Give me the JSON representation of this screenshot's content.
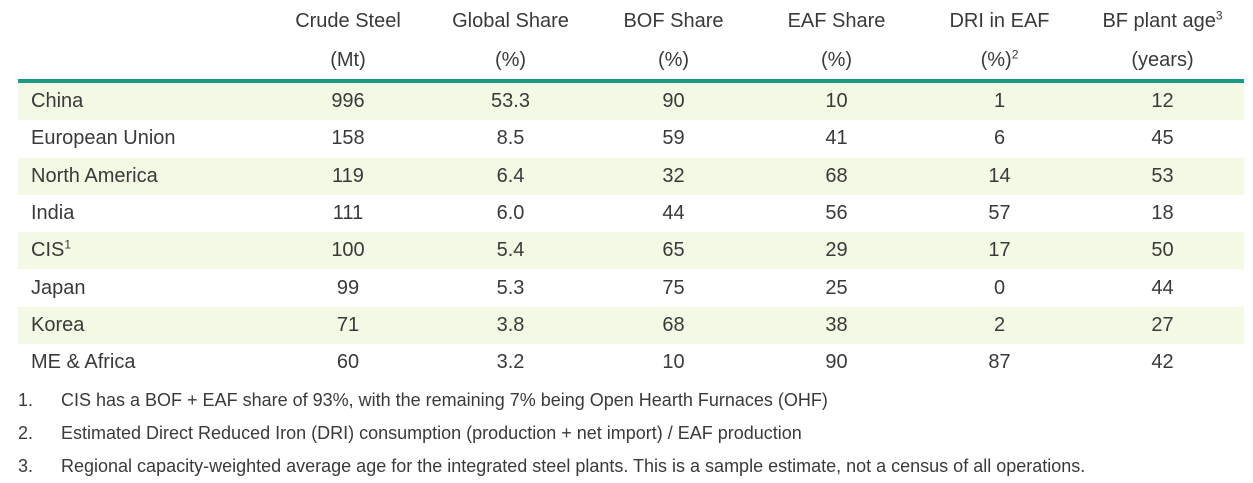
{
  "header": {
    "row1": [
      "Crude Steel",
      "Global Share",
      "BOF Share",
      "EAF Share",
      "DRI in EAF",
      "BF plant age"
    ],
    "row2": [
      "(Mt)",
      "(%)",
      "(%)",
      "(%)",
      "(%)",
      "(years)"
    ],
    "sup_dri": "2",
    "sup_bf": "3"
  },
  "rows": [
    {
      "region": "China",
      "sup": "",
      "values": [
        "996",
        "53.3",
        "90",
        "10",
        "1",
        "12"
      ]
    },
    {
      "region": "European Union",
      "sup": "",
      "values": [
        "158",
        "8.5",
        "59",
        "41",
        "6",
        "45"
      ]
    },
    {
      "region": "North America",
      "sup": "",
      "values": [
        "119",
        "6.4",
        "32",
        "68",
        "14",
        "53"
      ]
    },
    {
      "region": "India",
      "sup": "",
      "values": [
        "111",
        "6.0",
        "44",
        "56",
        "57",
        "18"
      ]
    },
    {
      "region": "CIS",
      "sup": "1",
      "values": [
        "100",
        "5.4",
        "65",
        "29",
        "17",
        "50"
      ]
    },
    {
      "region": "Japan",
      "sup": "",
      "values": [
        "99",
        "5.3",
        "75",
        "25",
        "0",
        "44"
      ]
    },
    {
      "region": "Korea",
      "sup": "",
      "values": [
        "71",
        "3.8",
        "68",
        "38",
        "2",
        "27"
      ]
    },
    {
      "region": "ME & Africa",
      "sup": "",
      "values": [
        "60",
        "3.2",
        "10",
        "90",
        "87",
        "42"
      ]
    }
  ],
  "notes": [
    {
      "num": "1.",
      "text": "CIS has a BOF + EAF share of 93%, with the remaining 7% being Open Hearth Furnaces (OHF)"
    },
    {
      "num": "2.",
      "text": "Estimated Direct Reduced Iron (DRI) consumption (production + net import) / EAF production"
    },
    {
      "num": "3.",
      "text": "Regional capacity-weighted average age for the integrated steel plants. This is a sample estimate, not a census of all operations."
    }
  ],
  "colors": {
    "rule": "#1a9a82",
    "shade": "#f3f9e4",
    "text": "#3a3a3a"
  }
}
